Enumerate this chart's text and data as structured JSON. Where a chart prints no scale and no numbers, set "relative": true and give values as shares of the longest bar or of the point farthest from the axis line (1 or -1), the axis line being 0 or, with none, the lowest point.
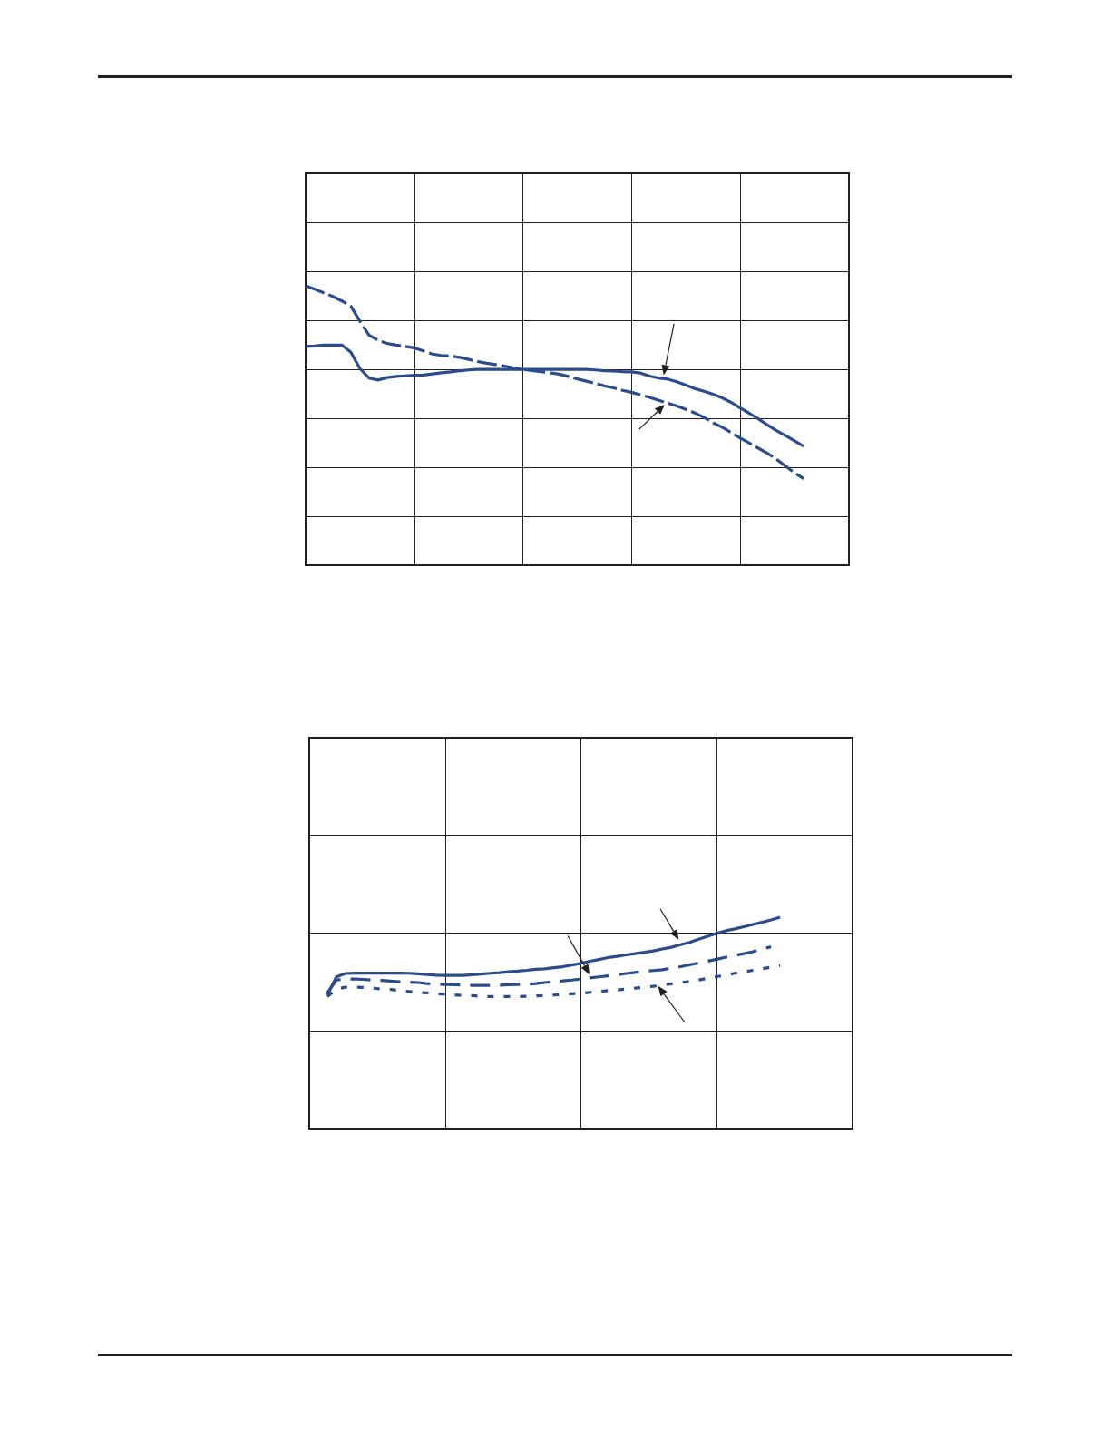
{
  "chart_data": [
    {
      "type": "line",
      "relative": true,
      "grid": true,
      "categories": [
        null,
        null,
        null,
        null,
        null,
        null,
        null,
        null,
        null,
        null,
        null,
        null,
        null,
        null,
        null,
        null,
        null,
        null,
        null,
        null,
        null,
        null,
        null,
        null,
        null,
        null,
        null,
        null,
        null,
        null,
        null,
        null,
        null,
        null,
        null,
        null,
        null,
        null,
        null,
        null,
        null,
        null,
        null,
        null,
        null,
        null,
        null,
        null,
        null,
        null,
        null,
        null,
        null,
        null,
        null,
        null,
        null,
        null,
        null,
        null,
        null
      ],
      "series": [
        {
          "color": "#2b4c8c",
          "line_style": "solid",
          "values": [
            0.783,
            0.785,
            0.788,
            0.788,
            0.788,
            0.762,
            0.704,
            0.67,
            0.663,
            0.672,
            0.676,
            0.678,
            0.68,
            0.681,
            0.685,
            0.689,
            0.692,
            0.696,
            0.699,
            0.701,
            0.701,
            0.701,
            0.701,
            0.701,
            0.701,
            0.701,
            0.701,
            0.701,
            0.701,
            0.701,
            0.701,
            0.701,
            0.699,
            0.696,
            0.695,
            0.693,
            0.692,
            0.688,
            0.677,
            0.67,
            0.666,
            0.657,
            0.645,
            0.632,
            0.623,
            0.612,
            0.599,
            0.583,
            0.563,
            0.544,
            0.524,
            0.502,
            0.482,
            0.464,
            0.445,
            0.426,
            null,
            null,
            null,
            null,
            null
          ]
        },
        {
          "color": "#2b4c8c",
          "line_style": "dashed",
          "values": [
            1,
            0.988,
            0.975,
            0.962,
            0.946,
            0.927,
            0.873,
            0.824,
            0.805,
            0.794,
            0.788,
            0.783,
            0.778,
            0.767,
            0.756,
            0.751,
            0.749,
            0.744,
            0.737,
            0.729,
            0.723,
            0.718,
            0.713,
            0.706,
            0.701,
            0.697,
            0.693,
            0.689,
            0.684,
            0.676,
            0.667,
            0.659,
            0.651,
            0.642,
            0.635,
            0.626,
            0.619,
            0.61,
            0.601,
            0.59,
            0.58,
            0.57,
            0.558,
            0.545,
            0.529,
            0.51,
            0.494,
            0.475,
            0.455,
            0.437,
            0.419,
            0.401,
            0.379,
            0.355,
            0.331,
            0.31,
            null,
            null,
            null,
            null,
            null
          ]
        }
      ]
    },
    {
      "type": "line",
      "relative": true,
      "grid": true,
      "categories": [
        null,
        null,
        null,
        null,
        null,
        null,
        null,
        null,
        null,
        null,
        null,
        null,
        null,
        null,
        null,
        null,
        null,
        null,
        null,
        null,
        null,
        null,
        null,
        null,
        null,
        null,
        null,
        null,
        null,
        null,
        null,
        null,
        null,
        null,
        null,
        null,
        null,
        null,
        null,
        null,
        null,
        null,
        null,
        null,
        null,
        null,
        null,
        null,
        null,
        null,
        null,
        null,
        null,
        null,
        null,
        null,
        null,
        null,
        null,
        null,
        null
      ],
      "series": [
        {
          "color": "#2b4c8c",
          "line_style": "solid",
          "values": [
            null,
            null,
            0.632,
            0.718,
            0.734,
            0.736,
            0.736,
            0.736,
            0.736,
            0.736,
            0.736,
            0.735,
            0.732,
            0.729,
            0.726,
            0.725,
            0.725,
            0.725,
            0.728,
            0.731,
            0.735,
            0.738,
            0.742,
            0.745,
            0.749,
            0.754,
            0.756,
            0.761,
            0.766,
            0.774,
            0.782,
            0.792,
            0.8,
            0.809,
            0.815,
            0.822,
            0.828,
            0.834,
            0.841,
            0.85,
            0.858,
            0.87,
            0.881,
            0.896,
            0.91,
            0.924,
            0.936,
            0.945,
            0.955,
            0.966,
            0.976,
            0.987,
            1,
            null,
            null,
            null,
            null,
            null,
            null,
            null,
            null
          ]
        },
        {
          "color": "#2b4c8c",
          "line_style": "dashed",
          "values": [
            null,
            null,
            0.642,
            0.703,
            0.708,
            0.708,
            0.706,
            0.703,
            0.701,
            0.698,
            0.695,
            0.693,
            0.691,
            0.686,
            0.683,
            0.682,
            0.681,
            0.679,
            0.678,
            0.678,
            0.678,
            0.679,
            0.681,
            0.682,
            0.683,
            0.686,
            0.691,
            0.695,
            0.699,
            0.703,
            0.708,
            0.713,
            0.718,
            0.723,
            0.728,
            0.734,
            0.739,
            0.744,
            0.748,
            0.752,
            0.759,
            0.766,
            0.775,
            0.784,
            0.792,
            0.801,
            0.811,
            0.819,
            0.828,
            0.837,
            0.85,
            0.86,
            null,
            null,
            null,
            null,
            null,
            null,
            null,
            null,
            null
          ]
        },
        {
          "color": "#2b4c8c",
          "line_style": "dotted",
          "values": [
            null,
            null,
            0.625,
            0.66,
            0.669,
            0.67,
            0.668,
            0.665,
            0.66,
            0.658,
            0.653,
            0.649,
            0.645,
            0.642,
            0.639,
            0.636,
            0.633,
            0.63,
            0.629,
            0.626,
            0.625,
            0.625,
            0.625,
            0.625,
            0.626,
            0.628,
            0.629,
            0.632,
            0.635,
            0.638,
            0.64,
            0.645,
            0.649,
            0.653,
            0.656,
            0.66,
            0.665,
            0.669,
            0.673,
            0.679,
            0.685,
            0.691,
            0.696,
            0.703,
            0.711,
            0.719,
            0.726,
            0.735,
            0.742,
            0.749,
            0.756,
            0.764,
            0.772,
            null,
            null,
            null,
            null,
            null,
            null,
            null,
            null
          ]
        }
      ]
    }
  ]
}
